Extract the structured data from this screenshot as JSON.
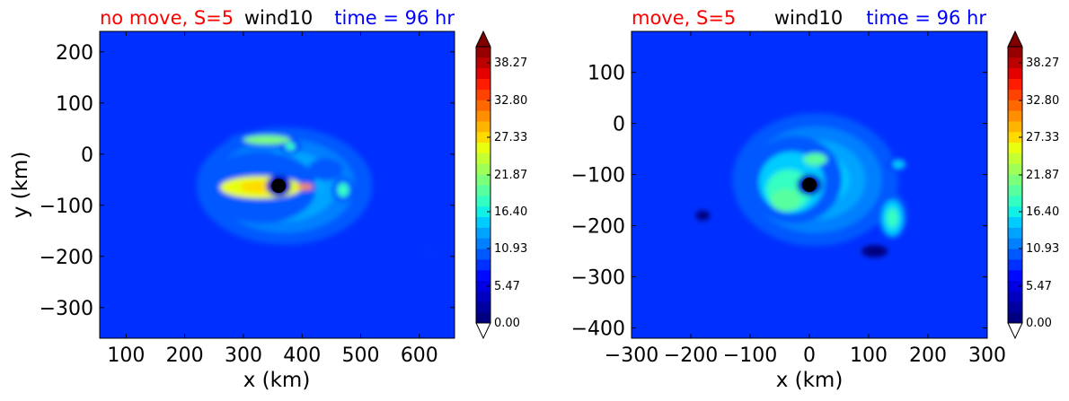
{
  "chart_data": [
    {
      "type": "contour",
      "title_left": "no move, S=5",
      "title_center": "wind10",
      "title_right": "time = 96 hr",
      "title_colors": {
        "left": "#ff0000",
        "center": "#000000",
        "right": "#0000ff"
      },
      "xlabel": "x (km)",
      "ylabel": "y (km)",
      "xlim": [
        55,
        660
      ],
      "ylim": [
        -360,
        240
      ],
      "xticks": [
        100,
        200,
        300,
        400,
        500,
        600
      ],
      "yticks": [
        200,
        100,
        0,
        -100,
        -200,
        -300
      ],
      "xtick_labels": [
        "100",
        "200",
        "300",
        "400",
        "500",
        "600"
      ],
      "ytick_labels": [
        "200",
        "100",
        "0",
        "−100",
        "−200",
        "−300"
      ],
      "storm_center": {
        "x": 360,
        "y": -62
      },
      "features": [
        {
          "x": 370,
          "y": -62,
          "rx": 150,
          "ry": 115,
          "level": 9.5
        },
        {
          "x": 330,
          "y": -65,
          "rx": 95,
          "ry": 70,
          "level": 6
        },
        {
          "x": 340,
          "y": -62,
          "rx": 70,
          "ry": 40,
          "level": 6
        },
        {
          "x": 320,
          "y": -65,
          "rx": 40,
          "ry": 18,
          "level": 5
        },
        {
          "x": 405,
          "y": -65,
          "rx": 22,
          "ry": 12,
          "level": 7
        },
        {
          "x": 330,
          "y": 28,
          "rx": 55,
          "ry": 16,
          "level": 6
        },
        {
          "x": 380,
          "y": 15,
          "rx": 18,
          "ry": 15,
          "level": 5
        },
        {
          "x": 440,
          "y": -30,
          "rx": 30,
          "ry": 22,
          "level": 6
        },
        {
          "x": 470,
          "y": -70,
          "rx": 20,
          "ry": 25,
          "level": 6
        },
        {
          "x": 620,
          "y": -190,
          "rx": 14,
          "ry": 13,
          "level": 5
        }
      ],
      "colorbar": {
        "ticks": [
          "38.27",
          "32.80",
          "27.33",
          "21.87",
          "16.40",
          "10.93",
          "5.47",
          "0.00"
        ],
        "colors": [
          "#00007f",
          "#00009f",
          "#0000c0",
          "#0000e0",
          "#0008ff",
          "#0030ff",
          "#0058ff",
          "#0080ff",
          "#00a4ff",
          "#00ccff",
          "#10f0e6",
          "#34ffc2",
          "#58ff9e",
          "#7cff7a",
          "#a0ff56",
          "#c4ff34",
          "#e8ff10",
          "#ffda00",
          "#ffb400",
          "#ff8e00",
          "#ff6800",
          "#ff4200",
          "#ff1c00",
          "#e40000",
          "#bd0000",
          "#960000"
        ],
        "extend_max_color": "#800000",
        "extend_min_color": "#ffffff"
      }
    },
    {
      "type": "contour",
      "title_left": "move, S=5",
      "title_center": "wind10",
      "title_right": "time = 96 hr",
      "title_colors": {
        "left": "#ff0000",
        "center": "#000000",
        "right": "#0000ff"
      },
      "xlabel": "x (km)",
      "ylabel": "",
      "xlim": [
        -300,
        300
      ],
      "ylim": [
        -420,
        180
      ],
      "xticks": [
        -300,
        -200,
        -100,
        0,
        100,
        200,
        300
      ],
      "yticks": [
        100,
        0,
        -100,
        -200,
        -300,
        -400
      ],
      "xtick_labels": [
        "−300",
        "−200",
        "−100",
        "0",
        "100",
        "200",
        "300"
      ],
      "ytick_labels": [
        "100",
        "0",
        "−100",
        "−200",
        "−300",
        "−400"
      ],
      "storm_center": {
        "x": 0,
        "y": -120
      },
      "features": [
        {
          "x": 10,
          "y": -110,
          "rx": 140,
          "ry": 130,
          "level": 9.5
        },
        {
          "x": -25,
          "y": -110,
          "rx": 80,
          "ry": 85,
          "level": 6
        },
        {
          "x": -10,
          "y": -115,
          "rx": 55,
          "ry": 55,
          "level": 6
        },
        {
          "x": -25,
          "y": -150,
          "rx": 40,
          "ry": 30,
          "level": 6
        },
        {
          "x": 10,
          "y": -70,
          "rx": 30,
          "ry": 20,
          "level": 6
        },
        {
          "x": 140,
          "y": -180,
          "rx": 25,
          "ry": 45,
          "level": 6
        },
        {
          "x": 150,
          "y": -80,
          "rx": 18,
          "ry": 15,
          "level": 5
        },
        {
          "x": 110,
          "y": -250,
          "rx": 22,
          "ry": 12,
          "level": 0
        },
        {
          "x": -180,
          "y": -180,
          "rx": 12,
          "ry": 10,
          "level": 0
        }
      ],
      "colorbar": {
        "ticks": [
          "38.27",
          "32.80",
          "27.33",
          "21.87",
          "16.40",
          "10.93",
          "5.47",
          "0.00"
        ],
        "colors": [
          "#00007f",
          "#00009f",
          "#0000c0",
          "#0000e0",
          "#0008ff",
          "#0030ff",
          "#0058ff",
          "#0080ff",
          "#00a4ff",
          "#00ccff",
          "#10f0e6",
          "#34ffc2",
          "#58ff9e",
          "#7cff7a",
          "#a0ff56",
          "#c4ff34",
          "#e8ff10",
          "#ffda00",
          "#ffb400",
          "#ff8e00",
          "#ff6800",
          "#ff4200",
          "#ff1c00",
          "#e40000",
          "#bd0000",
          "#960000"
        ],
        "extend_max_color": "#800000",
        "extend_min_color": "#ffffff"
      }
    }
  ]
}
